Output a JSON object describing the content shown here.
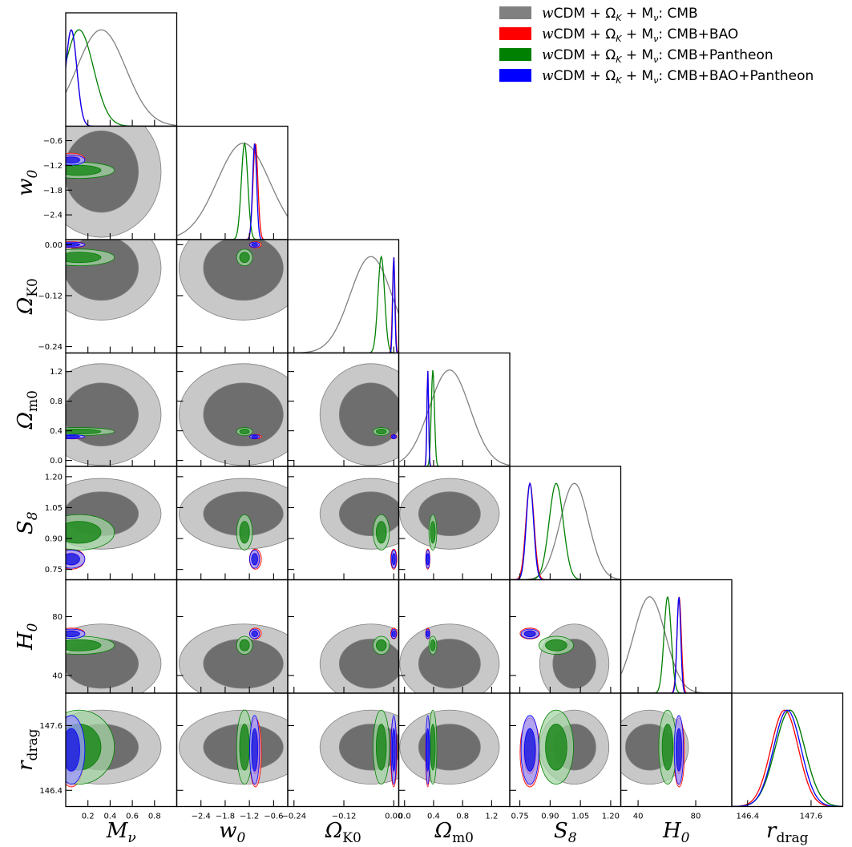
{
  "chart_data": {
    "type": "corner",
    "parameters": [
      {
        "key": "mnu",
        "label": "M_ν",
        "ticks": [
          0.2,
          0.4,
          0.6,
          0.8
        ],
        "tick_labels": [
          "0.2",
          "0.4",
          "0.6",
          "0.8"
        ],
        "range": [
          0.0,
          1.0
        ]
      },
      {
        "key": "w0",
        "label": "w_0",
        "ticks": [
          -2.4,
          -1.8,
          -1.2,
          -0.6
        ],
        "tick_labels": [
          "−2.4",
          "−1.8",
          "−1.2",
          "−0.6"
        ],
        "range": [
          -3.0,
          -0.25
        ]
      },
      {
        "key": "ok",
        "label": "Ω_K0",
        "ticks": [
          -0.24,
          -0.12,
          0.0
        ],
        "tick_labels": [
          "−0.24",
          "−0.12",
          "0.00"
        ],
        "range": [
          -0.255,
          0.012
        ]
      },
      {
        "key": "om",
        "label": "Ω_m0",
        "ticks": [
          0.0,
          0.4,
          0.8,
          1.2
        ],
        "tick_labels": [
          "0.0",
          "0.4",
          "0.8",
          "1.2"
        ],
        "range": [
          -0.08,
          1.45
        ]
      },
      {
        "key": "s8",
        "label": "S_8",
        "ticks": [
          0.75,
          0.9,
          1.05,
          1.2
        ],
        "tick_labels": [
          "0.75",
          "0.90",
          "1.05",
          "1.20"
        ],
        "range": [
          0.7,
          1.25
        ]
      },
      {
        "key": "h0",
        "label": "H_0",
        "ticks": [
          40,
          80
        ],
        "tick_labels": [
          "40",
          "80"
        ],
        "range": [
          28,
          105
        ]
      },
      {
        "key": "rd",
        "label": "r_drag",
        "ticks": [
          146.4,
          147.6
        ],
        "tick_labels": [
          "146.4",
          "147.6"
        ],
        "range": [
          146.1,
          148.2
        ]
      }
    ],
    "axis_labels": {
      "mnu": [
        "M",
        "ν"
      ],
      "w0": [
        "w",
        "0"
      ],
      "ok": [
        "Ω",
        "K0"
      ],
      "om": [
        "Ω",
        "m0"
      ],
      "s8": [
        "S",
        "8"
      ],
      "h0": [
        "H",
        "0"
      ],
      "rd": [
        "r",
        "drag"
      ]
    },
    "series": [
      {
        "name_parts": [
          "w",
          "CDM + Ω",
          "K",
          " + M",
          "ν",
          ": CMB"
        ],
        "color": "#808080",
        "fill_inner": "#6e6e6e",
        "fill_outer": "#c8c8c8",
        "mean": {
          "mnu": 0.32,
          "w0": -1.35,
          "ok": -0.055,
          "om": 0.62,
          "s8": 1.02,
          "h0": 48,
          "rd": 147.2
        },
        "sd": {
          "mnu": 0.22,
          "w0": 0.65,
          "ok": 0.05,
          "om": 0.28,
          "s8": 0.07,
          "h0": 11,
          "rd": 0.28
        }
      },
      {
        "name_parts": [
          "w",
          "CDM + Ω",
          "K",
          " + M",
          "ν",
          ": CMB+BAO"
        ],
        "color": "#ff0000",
        "fill_inner": "#ff5a5a",
        "fill_outer": "#ffb0b0",
        "mean": {
          "mnu": 0.05,
          "w0": -1.05,
          "ok": 0.0,
          "om": 0.32,
          "s8": 0.8,
          "h0": 68.5,
          "rd": 147.1
        },
        "sd": {
          "mnu": 0.05,
          "w0": 0.06,
          "ok": 0.003,
          "om": 0.012,
          "s8": 0.02,
          "h0": 1.5,
          "rd": 0.26
        }
      },
      {
        "name_parts": [
          "w",
          "CDM + Ω",
          "K",
          " + M",
          "ν",
          ": CMB+Pantheon"
        ],
        "color": "#008000",
        "fill_inner": "#1f8a1f",
        "fill_outer": "#a5d6a5",
        "mean": {
          "mnu": 0.12,
          "w0": -1.32,
          "ok": -0.03,
          "om": 0.39,
          "s8": 0.93,
          "h0": 60.5,
          "rd": 147.2
        },
        "sd": {
          "mnu": 0.13,
          "w0": 0.08,
          "ok": 0.008,
          "om": 0.022,
          "s8": 0.035,
          "h0": 2.5,
          "rd": 0.28
        }
      },
      {
        "name_parts": [
          "w",
          "CDM + Ω",
          "K",
          " + M",
          "ν",
          ": CMB+BAO+Pantheon"
        ],
        "color": "#0000ff",
        "fill_inner": "#2020e0",
        "fill_outer": "#9a9aff",
        "mean": {
          "mnu": 0.05,
          "w0": -1.07,
          "ok": 0.0,
          "om": 0.32,
          "s8": 0.8,
          "h0": 68.3,
          "rd": 147.15
        },
        "sd": {
          "mnu": 0.05,
          "w0": 0.05,
          "ok": 0.0025,
          "om": 0.011,
          "s8": 0.018,
          "h0": 1.3,
          "rd": 0.26
        }
      }
    ],
    "legend_placement": "top-right",
    "grid": false
  }
}
